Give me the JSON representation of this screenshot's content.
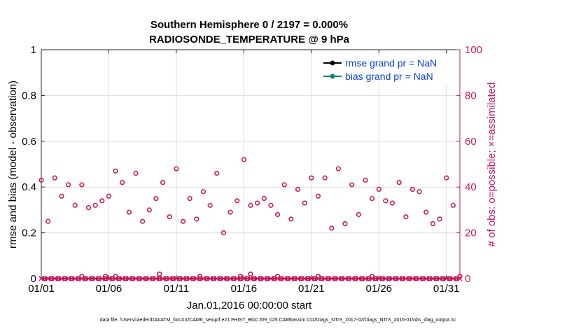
{
  "chart_data": {
    "type": "scatter",
    "title_line1": "Southern Hemisphere 0 / 2197 = 0.000%",
    "title_line2": "RADIOSONDE_TEMPERATURE @ 9 hPa",
    "xlabel": "Jan.01,2016 00:00:00 start",
    "ylabel_left": "rmse and bias (model - observation)",
    "ylabel_right": "# of obs: o=possible; ×=assimilated",
    "footer": "data file: /Users/raeder/DAI/ATM_forcXX/CAM6_setup/f.e21.FHIST_BGC.f09_025.CAM6assim.011/Diags_NTrS_2017-02/Diags_NTrS_2016-01/obs_diag_output.nc",
    "xlim": [
      1,
      32
    ],
    "ylim_left": [
      0,
      1
    ],
    "ylim_right": [
      0,
      100
    ],
    "x_ticks": [
      {
        "v": 1,
        "label": "01/01"
      },
      {
        "v": 6,
        "label": "01/06"
      },
      {
        "v": 11,
        "label": "01/11"
      },
      {
        "v": 16,
        "label": "01/16"
      },
      {
        "v": 21,
        "label": "01/21"
      },
      {
        "v": 26,
        "label": "01/26"
      },
      {
        "v": 31,
        "label": "01/31"
      }
    ],
    "y_ticks_left": [
      {
        "v": 0,
        "label": "0"
      },
      {
        "v": 0.2,
        "label": "0.2"
      },
      {
        "v": 0.4,
        "label": "0.4"
      },
      {
        "v": 0.6,
        "label": "0.6"
      },
      {
        "v": 0.8,
        "label": "0.8"
      },
      {
        "v": 1,
        "label": "1"
      }
    ],
    "y_ticks_right": [
      {
        "v": 0,
        "label": "0"
      },
      {
        "v": 20,
        "label": "20"
      },
      {
        "v": 40,
        "label": "40"
      },
      {
        "v": 60,
        "label": "60"
      },
      {
        "v": 80,
        "label": "80"
      },
      {
        "v": 100,
        "label": "100"
      }
    ],
    "grid": true,
    "legend_position": "top-right",
    "series": [
      {
        "name": "rmse grand pr = NaN",
        "color": "#000000",
        "values": []
      },
      {
        "name": "bias grand pr = NaN",
        "color": "#13807a",
        "values": []
      }
    ],
    "obs_possible": {
      "color": "#c8175d",
      "x": [
        1.0,
        1.25,
        1.5,
        1.75,
        2.0,
        2.25,
        2.5,
        2.75,
        3.0,
        3.25,
        3.5,
        3.75,
        4.0,
        4.25,
        4.5,
        4.75,
        5.0,
        5.25,
        5.5,
        5.75,
        6.0,
        6.25,
        6.5,
        6.75,
        7.0,
        7.25,
        7.5,
        7.75,
        8.0,
        8.25,
        8.5,
        8.75,
        9.0,
        9.25,
        9.5,
        9.75,
        10.0,
        10.25,
        10.5,
        10.75,
        11.0,
        11.25,
        11.5,
        11.75,
        12.0,
        12.25,
        12.5,
        12.75,
        13.0,
        13.25,
        13.5,
        13.75,
        14.0,
        14.25,
        14.5,
        14.75,
        15.0,
        15.25,
        15.5,
        15.75,
        16.0,
        16.25,
        16.5,
        16.75,
        17.0,
        17.25,
        17.5,
        17.75,
        18.0,
        18.25,
        18.5,
        18.75,
        19.0,
        19.25,
        19.5,
        19.75,
        20.0,
        20.25,
        20.5,
        20.75,
        21.0,
        21.25,
        21.5,
        21.75,
        22.0,
        22.25,
        22.5,
        22.75,
        23.0,
        23.25,
        23.5,
        23.75,
        24.0,
        24.25,
        24.5,
        24.75,
        25.0,
        25.25,
        25.5,
        25.75,
        26.0,
        26.25,
        26.5,
        26.75,
        27.0,
        27.25,
        27.5,
        27.75,
        28.0,
        28.25,
        28.5,
        28.75,
        29.0,
        29.25,
        29.5,
        29.75,
        30.0,
        30.25,
        30.5,
        30.75,
        31.0,
        31.25,
        31.5,
        31.75,
        32.0
      ],
      "y": [
        43,
        0,
        25,
        0,
        44,
        0,
        36,
        0,
        41,
        0,
        32,
        0,
        41,
        0,
        31,
        0,
        32,
        0,
        34,
        0,
        36,
        0,
        47,
        0,
        42,
        0,
        29,
        0,
        46,
        0,
        25,
        0,
        30,
        0,
        35,
        0,
        42,
        0,
        27,
        0,
        48,
        0,
        25,
        0,
        35,
        0,
        26,
        0,
        38,
        0,
        32,
        0,
        46,
        0,
        20,
        0,
        29,
        0,
        34,
        0,
        52,
        0,
        32,
        0,
        33,
        0,
        35,
        0,
        32,
        0,
        28,
        0,
        41,
        0,
        26,
        0,
        39,
        0,
        33,
        0,
        44,
        0,
        36,
        0,
        44,
        0,
        22,
        0,
        48,
        0,
        24,
        0,
        41,
        0,
        28,
        0,
        43,
        0,
        35,
        0,
        39,
        0,
        34,
        0,
        33,
        0,
        42,
        0,
        27,
        0,
        39,
        0,
        38,
        0,
        29,
        0,
        24,
        0,
        26,
        0,
        44,
        0,
        32,
        0,
        1
      ]
    },
    "obs_possible_raised": [
      {
        "x": 4.0,
        "v": 1
      },
      {
        "x": 5.75,
        "v": 1
      },
      {
        "x": 6.5,
        "v": 1
      },
      {
        "x": 9.75,
        "v": 2
      },
      {
        "x": 12.75,
        "v": 1
      },
      {
        "x": 15.75,
        "v": 1
      },
      {
        "x": 16.5,
        "v": 2
      },
      {
        "x": 18.5,
        "v": 1
      },
      {
        "x": 21.5,
        "v": 1
      },
      {
        "x": 25.5,
        "v": 1
      }
    ],
    "obs_assimilated": {
      "color": "#c8175d",
      "x_start": 1,
      "x_end": 32,
      "x_step": 0.25,
      "value": 0
    }
  }
}
